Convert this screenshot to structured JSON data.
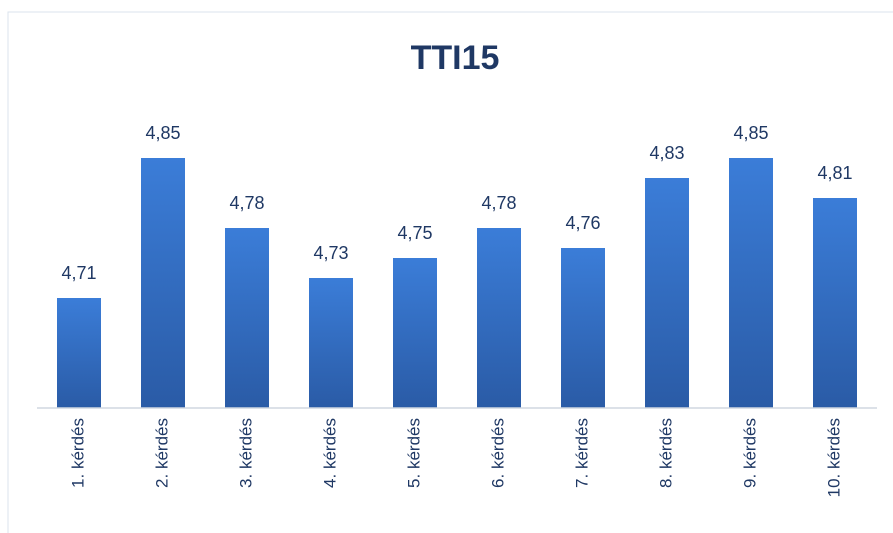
{
  "chart_data": {
    "type": "bar",
    "title": "TTI15",
    "categories": [
      "1. kérdés",
      "2. kérdés",
      "3. kérdés",
      "4. kérdés",
      "5. kérdés",
      "6. kérdés",
      "7. kérdés",
      "8. kérdés",
      "9. kérdés",
      "10. kérdés"
    ],
    "values": [
      4.71,
      4.85,
      4.78,
      4.73,
      4.75,
      4.78,
      4.76,
      4.83,
      4.85,
      4.81
    ],
    "value_labels": [
      "4,71",
      "4,85",
      "4,78",
      "4,73",
      "4,75",
      "4,78",
      "4,76",
      "4,83",
      "4,85",
      "4,81"
    ],
    "color": "#3b7dd8",
    "ylim": [
      4.6,
      4.9
    ]
  }
}
